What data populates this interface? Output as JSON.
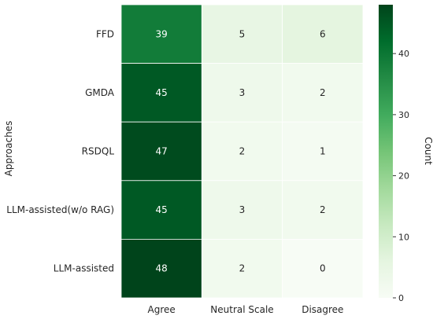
{
  "chart_data": {
    "type": "heatmap",
    "ylabel": "Approaches",
    "colorbar_label": "Count",
    "rows": [
      "FFD",
      "GMDA",
      "RSDQL",
      "LLM-assisted(w/o RAG)",
      "LLM-assisted"
    ],
    "columns": [
      "Agree",
      "Neutral Scale",
      "Disagree"
    ],
    "values": [
      [
        39,
        5,
        6
      ],
      [
        45,
        3,
        2
      ],
      [
        47,
        2,
        1
      ],
      [
        45,
        3,
        2
      ],
      [
        48,
        2,
        0
      ]
    ],
    "color_range": [
      0,
      48
    ],
    "colorbar_ticks": [
      0,
      10,
      20,
      30,
      40
    ],
    "colormap": "Greens",
    "colors": {
      "low": "#f7fcf5",
      "high": "#00441b",
      "grid": "#ffffff"
    }
  }
}
